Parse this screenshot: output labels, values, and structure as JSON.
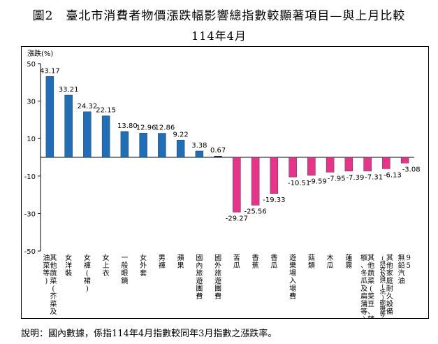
{
  "title": "圖2　臺北市消費者物價漲跌幅影響總指數較顯著項目—與上月比較",
  "subtitle": "114年4月",
  "note": "說明：國內數據，係指114年4月指數較同年3月指數之漲跌率。",
  "colors": {
    "positive": "#1f6fb8",
    "positive_dark": "#0b2a55",
    "negative": "#e8338a"
  },
  "chart_data": {
    "type": "bar",
    "ylabel": "漲跌(%)",
    "ylim": [
      -50,
      50
    ],
    "yticks": [
      50,
      30,
      10,
      -10,
      -30,
      -50
    ],
    "categories": [
      "其他蔬菜(芥菜及油菜等)",
      "女洋裝",
      "女褲(裙)",
      "女上衣",
      "一般眼鏡",
      "女外套",
      "男褲",
      "蘋果",
      "國內旅遊團費",
      "國外旅遊團費",
      "苦瓜",
      "香蕉",
      "香瓜",
      "遊樂場入場費",
      "菇類",
      "木瓜",
      "蓮霧",
      "其他蔬菜(菜豆、辣椒、冬瓜及扁蒲等)",
      "其他家庭耐久設備(烘衣及烘(洗)碗機等)",
      "95無鉛汽油"
    ],
    "label_columns": [
      [
        "其他蔬菜(芥菜及",
        "油菜等)"
      ],
      [
        "女洋裝"
      ],
      [
        "女褲(裙)"
      ],
      [
        "女上衣"
      ],
      [
        "一般眼鏡"
      ],
      [
        "女外套"
      ],
      [
        "男褲"
      ],
      [
        "蘋果"
      ],
      [
        "國內旅遊團費"
      ],
      [
        "國外旅遊團費"
      ],
      [
        "苦瓜"
      ],
      [
        "香蕉"
      ],
      [
        "香瓜"
      ],
      [
        "遊樂場入場費"
      ],
      [
        "菇類"
      ],
      [
        "木瓜"
      ],
      [
        "蓮霧"
      ],
      [
        "其他蔬菜(菜豆、辣",
        "椒、冬瓜及扁蒲等)"
      ],
      [
        "其他家庭耐久設備",
        "(烘衣及烘(洗)碗機等)"
      ],
      [
        "95",
        "無鉛汽油"
      ]
    ],
    "values": [
      43.17,
      33.21,
      24.32,
      22.15,
      13.8,
      12.96,
      12.86,
      9.22,
      3.38,
      0.67,
      -29.27,
      -25.56,
      -19.33,
      -10.51,
      -9.59,
      -7.95,
      -7.39,
      -7.31,
      -6.13,
      -3.08
    ],
    "value_labels": [
      "43.17",
      "33.21",
      "24.32",
      "22.15",
      "13.80",
      "12.96",
      "12.86",
      "9.22",
      "3.38",
      "0.67",
      "-29.27",
      "-25.56",
      "-19.33",
      "-10.51",
      "-9.59",
      "-7.95",
      "-7.39",
      "-7.31",
      "-6.13",
      "-3.08"
    ],
    "grid": false,
    "legend": "none"
  }
}
